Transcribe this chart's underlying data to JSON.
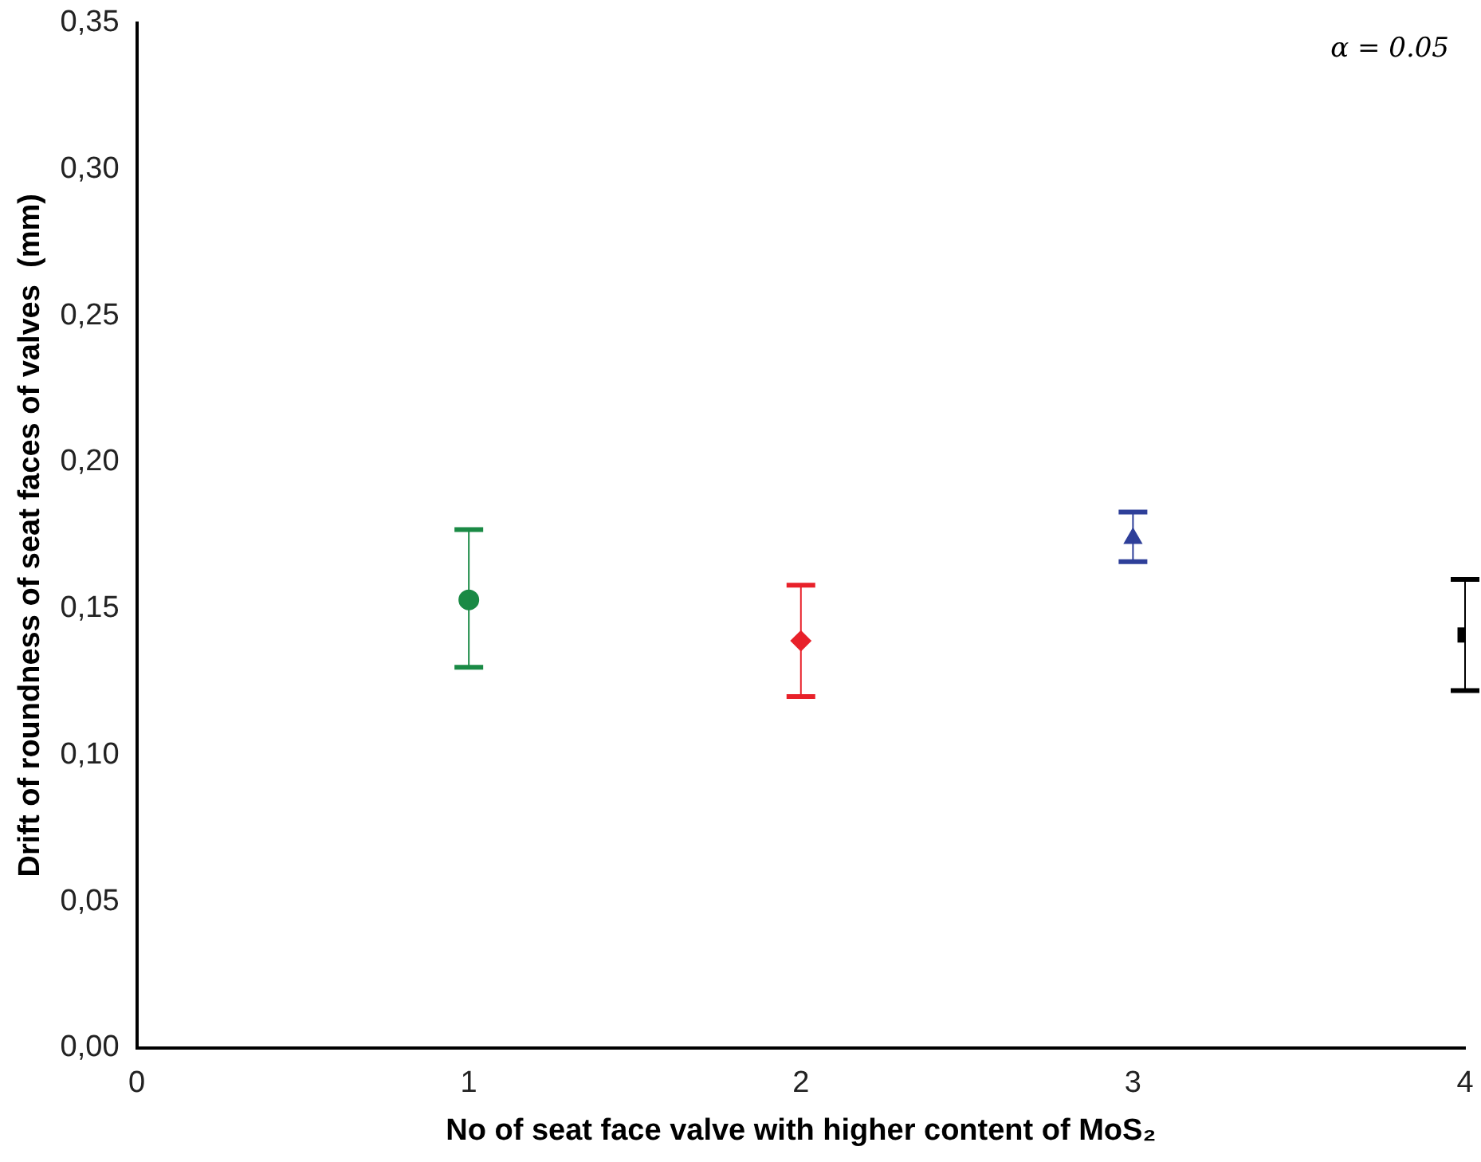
{
  "chart_data": {
    "type": "scatter",
    "xlabel": "No of seat face valve with higher content of MoS₂",
    "ylabel": "Drift of roundness of seat faces of valves  (mm)",
    "annotations": [
      "α = 0.05"
    ],
    "xlim": [
      0,
      4
    ],
    "xticks": [
      0,
      1,
      2,
      3,
      4
    ],
    "ylim": [
      0,
      0.35
    ],
    "yticks": [
      {
        "value": 0,
        "label": "0,00"
      },
      {
        "value": 0.05,
        "label": "0,05"
      },
      {
        "value": 0.1,
        "label": "0,10"
      },
      {
        "value": 0.15,
        "label": "0,15"
      },
      {
        "value": 0.2,
        "label": "0,20"
      },
      {
        "value": 0.25,
        "label": "0,25"
      },
      {
        "value": 0.3,
        "label": "0,30"
      },
      {
        "value": 0.35,
        "label": "0,35"
      }
    ],
    "grid": false,
    "legend": false,
    "series": [
      {
        "x": [
          1
        ],
        "values": [
          0.153
        ],
        "errors": [
          [
            0.13,
            0.177
          ]
        ],
        "color": "#1a8a45",
        "marker": "circle"
      },
      {
        "x": [
          2
        ],
        "values": [
          0.139
        ],
        "errors": [
          [
            0.12,
            0.158
          ]
        ],
        "color": "#e8212a",
        "marker": "diamond"
      },
      {
        "x": [
          3
        ],
        "values": [
          0.174
        ],
        "errors": [
          [
            0.166,
            0.183
          ]
        ],
        "color": "#2e3f99",
        "marker": "triangle"
      },
      {
        "x": [
          4
        ],
        "values": [
          0.141
        ],
        "errors": [
          [
            0.122,
            0.16
          ]
        ],
        "color": "#000000",
        "marker": "square"
      }
    ]
  }
}
